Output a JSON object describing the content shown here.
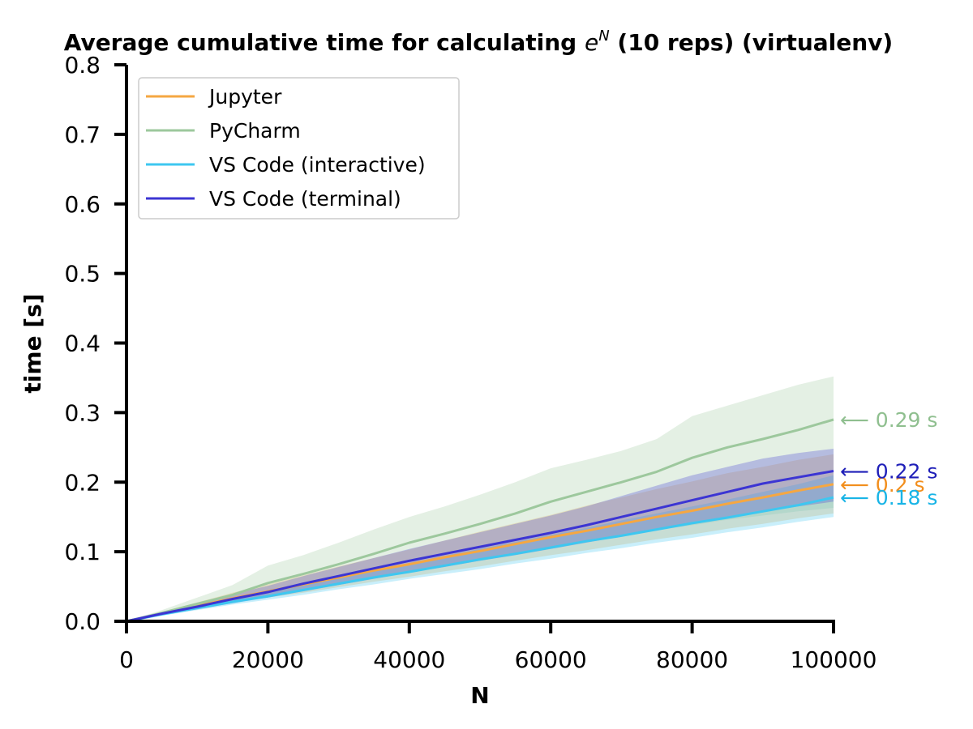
{
  "chart_data": {
    "type": "line",
    "title_main": "Average cumulative time for calculating ",
    "title_math_base": "e",
    "title_math_sup": "N",
    "title_suffix": " (10 reps) (virtualenv)",
    "xlabel": "N",
    "ylabel": "time [s]",
    "xlim": [
      0,
      100000
    ],
    "ylim": [
      0,
      0.8
    ],
    "x_ticks": [
      0,
      20000,
      40000,
      60000,
      80000,
      100000
    ],
    "x_tick_labels": [
      "0",
      "20000",
      "40000",
      "60000",
      "80000",
      "100000"
    ],
    "y_ticks": [
      0,
      0.1,
      0.2,
      0.3,
      0.4,
      0.5,
      0.6,
      0.7,
      0.8
    ],
    "y_tick_labels": [
      "0.0",
      "0.1",
      "0.2",
      "0.3",
      "0.4",
      "0.5",
      "0.6",
      "0.7",
      "0.8"
    ],
    "grid": false,
    "legend_position": "top-left",
    "x": [
      0,
      5000,
      10000,
      15000,
      20000,
      25000,
      30000,
      35000,
      40000,
      45000,
      50000,
      55000,
      60000,
      65000,
      70000,
      75000,
      80000,
      85000,
      90000,
      95000,
      100000
    ],
    "series": [
      {
        "name": "Jupyter",
        "color": "#f5a742",
        "end_color": "#f28e1c",
        "end_label": "0.2 s",
        "values": [
          0,
          0.011,
          0.022,
          0.033,
          0.043,
          0.053,
          0.063,
          0.073,
          0.082,
          0.092,
          0.101,
          0.111,
          0.121,
          0.13,
          0.14,
          0.15,
          0.159,
          0.169,
          0.178,
          0.188,
          0.197
        ],
        "lower": [
          0,
          0.009,
          0.018,
          0.027,
          0.034,
          0.041,
          0.049,
          0.057,
          0.064,
          0.072,
          0.079,
          0.087,
          0.095,
          0.102,
          0.11,
          0.118,
          0.125,
          0.133,
          0.14,
          0.148,
          0.155
        ],
        "upper": [
          0,
          0.013,
          0.027,
          0.041,
          0.053,
          0.066,
          0.079,
          0.091,
          0.103,
          0.116,
          0.129,
          0.141,
          0.153,
          0.166,
          0.178,
          0.19,
          0.201,
          0.213,
          0.222,
          0.232,
          0.24
        ]
      },
      {
        "name": "PyCharm",
        "color": "#9dc89d",
        "end_color": "#8fbf8f",
        "end_label": "0.29 s",
        "values": [
          0,
          0.012,
          0.025,
          0.038,
          0.055,
          0.068,
          0.082,
          0.097,
          0.113,
          0.126,
          0.14,
          0.155,
          0.172,
          0.186,
          0.2,
          0.215,
          0.235,
          0.25,
          0.262,
          0.275,
          0.29
        ],
        "lower": [
          0,
          0.009,
          0.018,
          0.028,
          0.038,
          0.046,
          0.055,
          0.064,
          0.072,
          0.081,
          0.09,
          0.098,
          0.107,
          0.115,
          0.123,
          0.131,
          0.138,
          0.146,
          0.152,
          0.158,
          0.163
        ],
        "upper": [
          0,
          0.016,
          0.034,
          0.052,
          0.08,
          0.095,
          0.113,
          0.132,
          0.15,
          0.165,
          0.182,
          0.2,
          0.22,
          0.232,
          0.245,
          0.262,
          0.295,
          0.31,
          0.325,
          0.34,
          0.352
        ]
      },
      {
        "name": "VS Code (interactive)",
        "color": "#3ec7f0",
        "end_color": "#18b4e6",
        "end_label": "0.18 s",
        "values": [
          0,
          0.01,
          0.019,
          0.028,
          0.036,
          0.045,
          0.054,
          0.063,
          0.071,
          0.08,
          0.089,
          0.097,
          0.106,
          0.115,
          0.123,
          0.132,
          0.141,
          0.149,
          0.158,
          0.167,
          0.178
        ],
        "lower": [
          0,
          0.008,
          0.016,
          0.024,
          0.031,
          0.038,
          0.046,
          0.053,
          0.061,
          0.068,
          0.075,
          0.083,
          0.09,
          0.098,
          0.105,
          0.113,
          0.12,
          0.128,
          0.135,
          0.143,
          0.15
        ],
        "upper": [
          0,
          0.012,
          0.023,
          0.033,
          0.043,
          0.053,
          0.063,
          0.074,
          0.084,
          0.094,
          0.104,
          0.114,
          0.124,
          0.134,
          0.145,
          0.155,
          0.165,
          0.175,
          0.186,
          0.197,
          0.21
        ]
      },
      {
        "name": "VS Code (terminal)",
        "color": "#3c35d3",
        "end_color": "#1f1fb8",
        "end_label": "0.22 s",
        "values": [
          0,
          0.011,
          0.021,
          0.032,
          0.042,
          0.054,
          0.065,
          0.076,
          0.087,
          0.097,
          0.107,
          0.117,
          0.127,
          0.138,
          0.15,
          0.162,
          0.174,
          0.186,
          0.198,
          0.207,
          0.216
        ],
        "lower": [
          0,
          0.009,
          0.017,
          0.026,
          0.034,
          0.043,
          0.052,
          0.061,
          0.07,
          0.078,
          0.087,
          0.095,
          0.104,
          0.113,
          0.122,
          0.131,
          0.14,
          0.149,
          0.158,
          0.165,
          0.172
        ],
        "upper": [
          0,
          0.013,
          0.026,
          0.039,
          0.051,
          0.065,
          0.078,
          0.091,
          0.104,
          0.116,
          0.128,
          0.14,
          0.152,
          0.165,
          0.18,
          0.195,
          0.21,
          0.222,
          0.234,
          0.242,
          0.248
        ]
      }
    ]
  }
}
